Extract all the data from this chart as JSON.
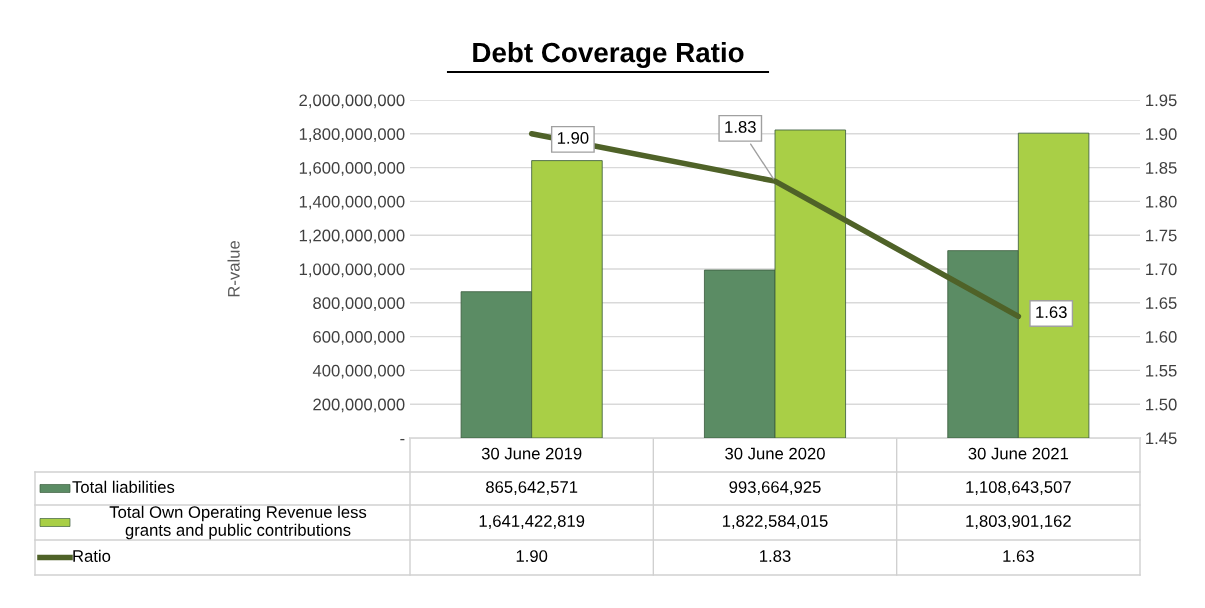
{
  "chart_data": {
    "type": "bar",
    "title": "Debt Coverage Ratio",
    "ylabel": "R-value",
    "categories": [
      "30 June 2019",
      "30 June 2020",
      "30 June 2021"
    ],
    "series": [
      {
        "name": "Total liabilities",
        "color": "#5b8c64",
        "values": [
          865642571,
          993664925,
          1108643507
        ],
        "value_labels": [
          "865,642,571",
          "993,664,925",
          "1,108,643,507"
        ]
      },
      {
        "name": "Total Own Operating Revenue less grants and public contributions",
        "color": "#a9cf46",
        "values": [
          1641422819,
          1822584015,
          1803901162
        ],
        "value_labels": [
          "1,641,422,819",
          "1,822,584,015",
          "1,803,901,162"
        ]
      },
      {
        "name": "Ratio",
        "type": "line",
        "axis": "y2",
        "color": "#4f6228",
        "values": [
          1.9,
          1.83,
          1.63
        ],
        "value_labels": [
          "1.90",
          "1.83",
          "1.63"
        ]
      }
    ],
    "ylim": [
      0,
      2000000000
    ],
    "yticks": [
      {
        "value": 0,
        "label": "-"
      },
      {
        "value": 200000000,
        "label": "200,000,000"
      },
      {
        "value": 400000000,
        "label": "400,000,000"
      },
      {
        "value": 600000000,
        "label": "600,000,000"
      },
      {
        "value": 800000000,
        "label": "800,000,000"
      },
      {
        "value": 1000000000,
        "label": "1,000,000,000"
      },
      {
        "value": 1200000000,
        "label": "1,200,000,000"
      },
      {
        "value": 1400000000,
        "label": "1,400,000,000"
      },
      {
        "value": 1600000000,
        "label": "1,600,000,000"
      },
      {
        "value": 1800000000,
        "label": "1,800,000,000"
      },
      {
        "value": 2000000000,
        "label": "2,000,000,000"
      }
    ],
    "y2lim": [
      1.45,
      1.95
    ],
    "y2ticks": [
      {
        "value": 1.45,
        "label": "1.45"
      },
      {
        "value": 1.5,
        "label": "1.50"
      },
      {
        "value": 1.55,
        "label": "1.55"
      },
      {
        "value": 1.6,
        "label": "1.60"
      },
      {
        "value": 1.65,
        "label": "1.65"
      },
      {
        "value": 1.7,
        "label": "1.70"
      },
      {
        "value": 1.75,
        "label": "1.75"
      },
      {
        "value": 1.8,
        "label": "1.80"
      },
      {
        "value": 1.85,
        "label": "1.85"
      },
      {
        "value": 1.9,
        "label": "1.90"
      },
      {
        "value": 1.95,
        "label": "1.95"
      }
    ],
    "grid": "y",
    "legend": "bottom",
    "marker": "none",
    "line_style": "solid"
  }
}
